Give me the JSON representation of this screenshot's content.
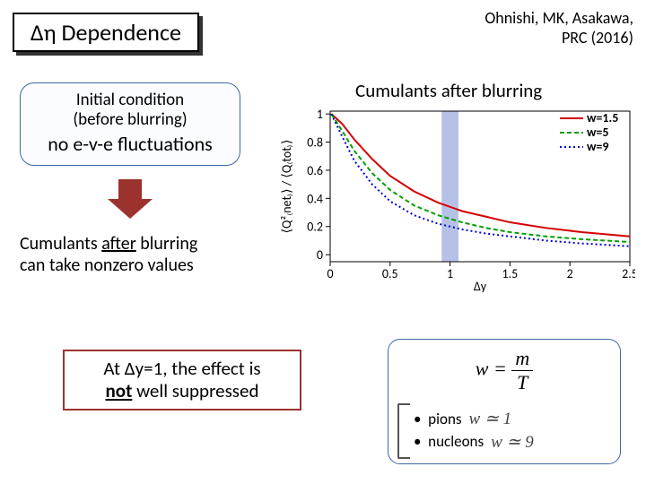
{
  "title": "Δη Dependence",
  "citation_l1": "Ohnishi, MK, Asakawa,",
  "citation_l2": "PRC (2016)",
  "init": {
    "l1": "Initial condition",
    "l2": "(before blurring)",
    "l3": "no e-v-e fluctuations"
  },
  "cumul": {
    "l1_a": "Cumulants ",
    "l1_b": "after",
    "l1_c": " blurring",
    "l2": "can take nonzero values"
  },
  "chart_title": "Cumulants after blurring",
  "at_box": {
    "a": "At Δy=1, the effect is",
    "b_pre": "",
    "b_bold": "not",
    "b_post": " well suppressed"
  },
  "eq": {
    "lhs": "w",
    "equals": "=",
    "num": "m",
    "den": "T",
    "rows": [
      {
        "label": "pions",
        "approx": "w ≃ 1"
      },
      {
        "label": "nucleons",
        "approx": "w ≃ 9"
      }
    ]
  },
  "chart": {
    "type": "line",
    "xlim": [
      0,
      2.5
    ],
    "ylim": [
      -0.05,
      1.02
    ],
    "xticks": [
      0,
      0.5,
      1,
      1.5,
      2,
      2.5
    ],
    "yticks": [
      0,
      0.2,
      0.4,
      0.6,
      0.8,
      1
    ],
    "xlabel": "Δy",
    "ylabel": "⟨Q²₍net₎⟩ / ⟨Q₍tot₎⟩",
    "highlight_x": [
      0.93,
      1.07
    ],
    "grid_color": "#e8e8e8",
    "axis_color": "#000",
    "tick_fontsize": 14,
    "label_fontsize": 14,
    "legend_fontsize": 14,
    "legend": [
      {
        "label": "w=1.5",
        "color": "#d40000",
        "dash": ""
      },
      {
        "label": "w=5",
        "color": "#00a000",
        "dash": "5,3"
      },
      {
        "label": "w=9",
        "color": "#0000d0",
        "dash": "2,3"
      }
    ],
    "series": [
      {
        "color": "#d40000",
        "dash": "",
        "pts": [
          [
            0.01,
            1.0
          ],
          [
            0.1,
            0.93
          ],
          [
            0.2,
            0.82
          ],
          [
            0.35,
            0.68
          ],
          [
            0.5,
            0.56
          ],
          [
            0.7,
            0.45
          ],
          [
            0.9,
            0.37
          ],
          [
            1.1,
            0.31
          ],
          [
            1.3,
            0.27
          ],
          [
            1.5,
            0.23
          ],
          [
            1.8,
            0.19
          ],
          [
            2.1,
            0.16
          ],
          [
            2.5,
            0.13
          ]
        ]
      },
      {
        "color": "#00a000",
        "dash": "5,3",
        "pts": [
          [
            0.01,
            1.0
          ],
          [
            0.1,
            0.88
          ],
          [
            0.2,
            0.74
          ],
          [
            0.35,
            0.58
          ],
          [
            0.5,
            0.46
          ],
          [
            0.7,
            0.35
          ],
          [
            0.9,
            0.28
          ],
          [
            1.1,
            0.23
          ],
          [
            1.3,
            0.19
          ],
          [
            1.5,
            0.16
          ],
          [
            1.8,
            0.13
          ],
          [
            2.1,
            0.11
          ],
          [
            2.5,
            0.09
          ]
        ]
      },
      {
        "color": "#0000d0",
        "dash": "2,3",
        "pts": [
          [
            0.01,
            1.0
          ],
          [
            0.1,
            0.84
          ],
          [
            0.2,
            0.67
          ],
          [
            0.35,
            0.5
          ],
          [
            0.5,
            0.38
          ],
          [
            0.7,
            0.28
          ],
          [
            0.9,
            0.22
          ],
          [
            1.1,
            0.18
          ],
          [
            1.3,
            0.15
          ],
          [
            1.5,
            0.13
          ],
          [
            1.8,
            0.1
          ],
          [
            2.1,
            0.08
          ],
          [
            2.5,
            0.06
          ]
        ]
      }
    ]
  }
}
